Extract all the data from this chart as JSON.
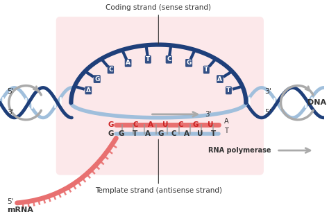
{
  "bg_color": "#ffffff",
  "pink_box_color": "#fce8ea",
  "dark_blue": "#1e3f7a",
  "light_blue": "#a0bfdc",
  "pink_strand": "#e87070",
  "pink_mrna": "#f4a0a0",
  "gray_color": "#aaaaaa",
  "red_text": "#cc2222",
  "dark_text": "#333333",
  "coding_strand_label": "Coding strand (sense strand)",
  "template_strand_label": "Template strand (antisense strand)",
  "rna_pol_label": "RNA polymerase",
  "dna_label": "DNA",
  "mrna_label": "mRNA",
  "coding_bases": [
    "A",
    "G",
    "C",
    "A",
    "T",
    "C",
    "G",
    "T",
    "A",
    "T"
  ],
  "mrna_top_bases": [
    "C",
    "A",
    "U",
    "C",
    "G",
    "U"
  ],
  "mrna_bot_bases": [
    "G",
    "T",
    "A",
    "G",
    "C",
    "A",
    "U",
    "T"
  ]
}
